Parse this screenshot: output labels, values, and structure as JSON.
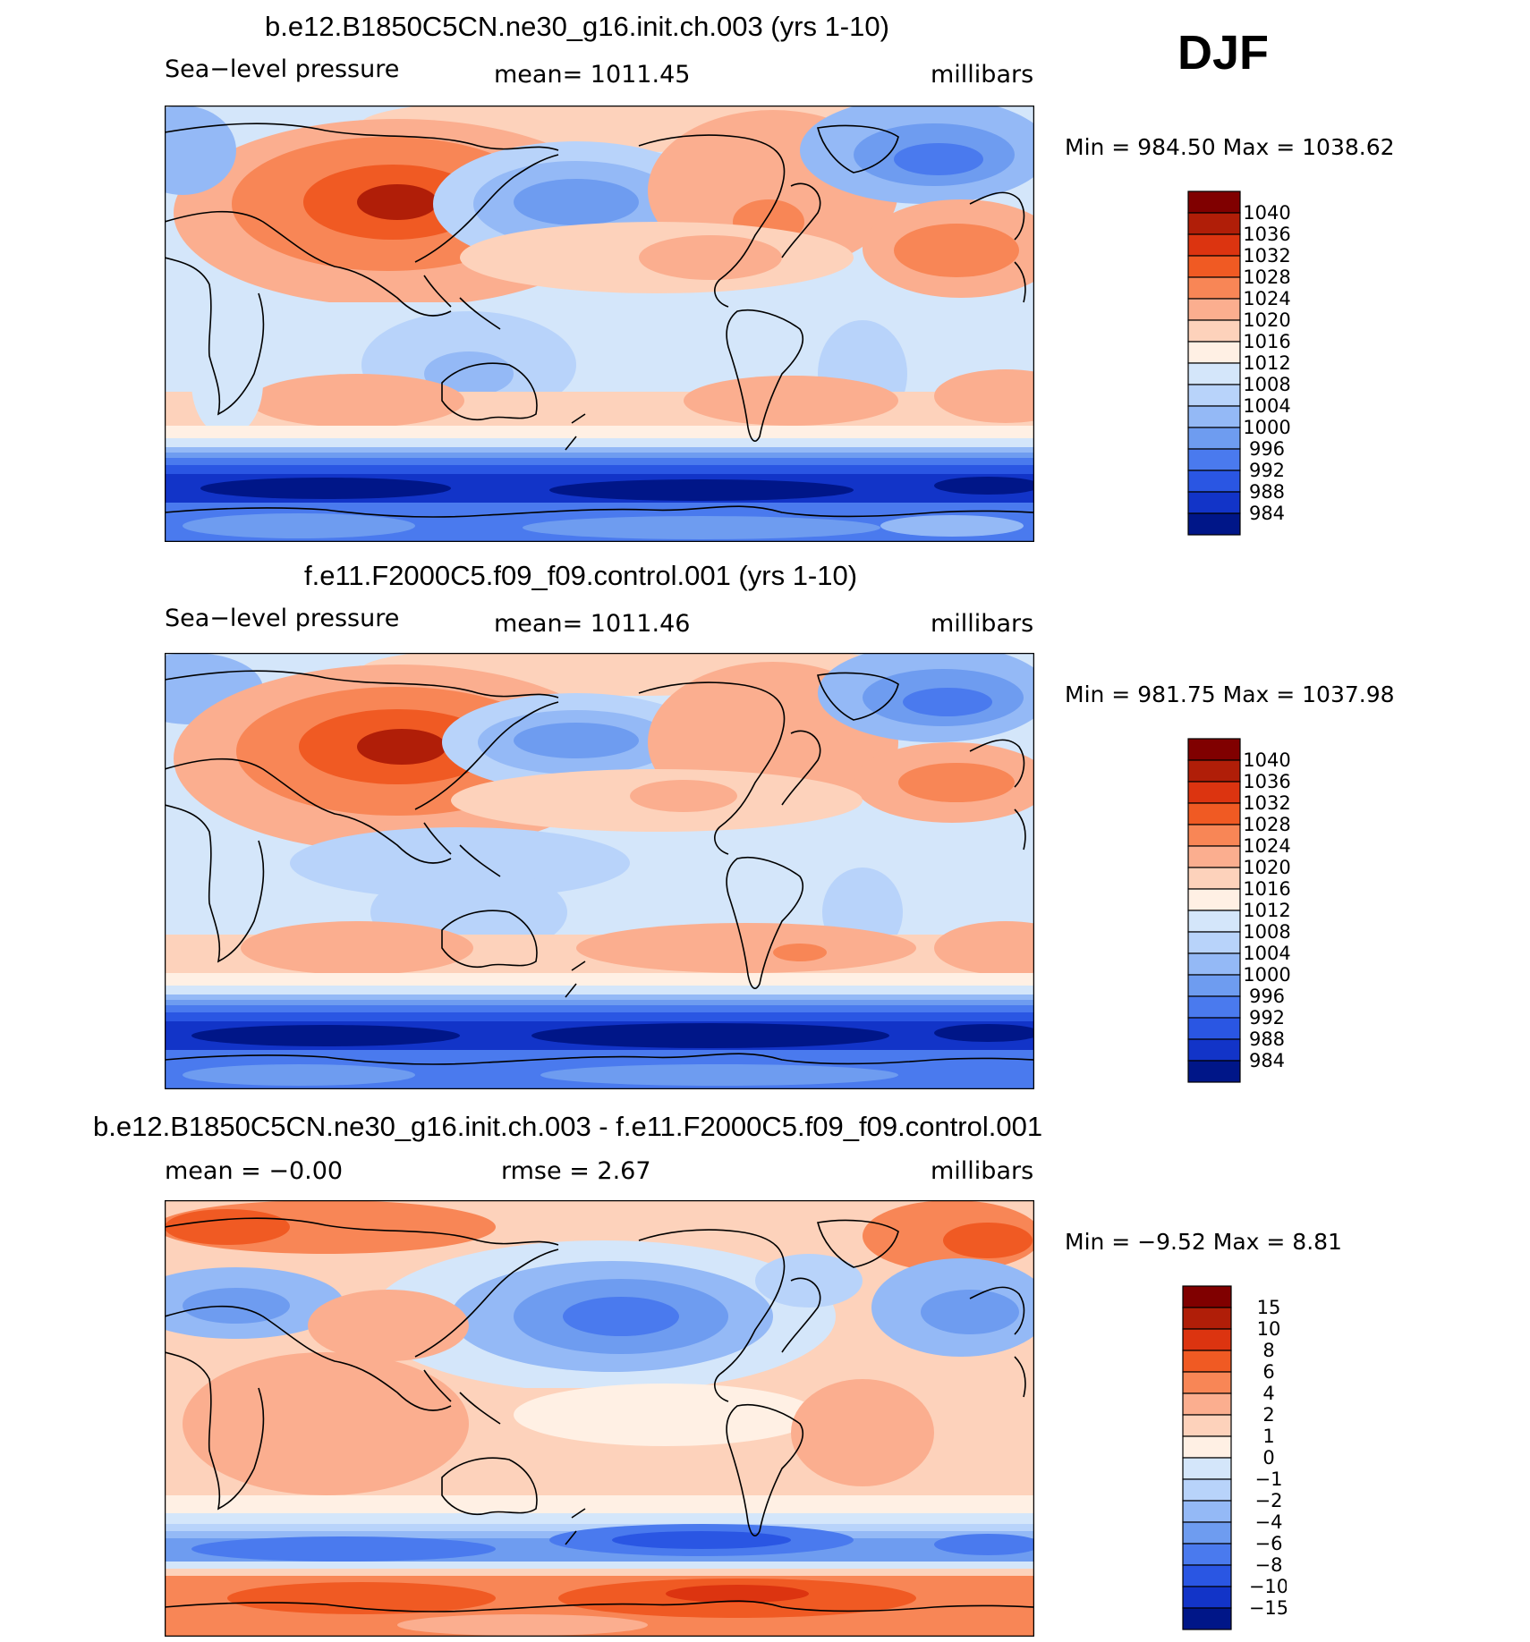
{
  "season_label": "DJF",
  "chart_data": [
    {
      "type": "heatmap",
      "title": "b.e12.B1850C5CN.ne30_g16.init.ch.003 (yrs 1-10)",
      "left_label": "Sea−level pressure",
      "center_label": "mean=  1011.45",
      "units": "millibars",
      "minmax": "Min  =  984.50  Max  =  1038.62",
      "colorbar": {
        "levels": [
          "1040",
          "1036",
          "1032",
          "1028",
          "1024",
          "1020",
          "1016",
          "1012",
          "1008",
          "1004",
          "1000",
          "996",
          "992",
          "988",
          "984"
        ],
        "colors": [
          "#800000",
          "#b01e08",
          "#dc3410",
          "#f05a23",
          "#f88656",
          "#fbae8f",
          "#fdd2bb",
          "#fff0e4",
          "#d4e6fa",
          "#b8d3fa",
          "#94b9f6",
          "#6e9cf0",
          "#4a7aee",
          "#2a56e3",
          "#1234c8",
          "#001688"
        ]
      }
    },
    {
      "type": "heatmap",
      "title": "f.e11.F2000C5.f09_f09.control.001 (yrs 1-10)",
      "left_label": "Sea−level pressure",
      "center_label": "mean=  1011.46",
      "units": "millibars",
      "minmax": "Min  =  981.75  Max  =  1037.98",
      "colorbar": {
        "levels": [
          "1040",
          "1036",
          "1032",
          "1028",
          "1024",
          "1020",
          "1016",
          "1012",
          "1008",
          "1004",
          "1000",
          "996",
          "992",
          "988",
          "984"
        ],
        "colors": [
          "#800000",
          "#b01e08",
          "#dc3410",
          "#f05a23",
          "#f88656",
          "#fbae8f",
          "#fdd2bb",
          "#fff0e4",
          "#d4e6fa",
          "#b8d3fa",
          "#94b9f6",
          "#6e9cf0",
          "#4a7aee",
          "#2a56e3",
          "#1234c8",
          "#001688"
        ]
      }
    },
    {
      "type": "heatmap",
      "title": "b.e12.B1850C5CN.ne30_g16.init.ch.003 - f.e11.F2000C5.f09_f09.control.001",
      "left_label": "mean  =    −0.00",
      "center_label": "rmse  =      2.67",
      "units": "millibars",
      "minmax": "Min  =     −9.52  Max  =      8.81",
      "colorbar": {
        "levels": [
          "15",
          "10",
          "8",
          "6",
          "4",
          "2",
          "1",
          "0",
          "−1",
          "−2",
          "−4",
          "−6",
          "−8",
          "−10",
          "−15"
        ],
        "colors": [
          "#800000",
          "#b01e08",
          "#dc3410",
          "#f05a23",
          "#f88656",
          "#fbae8f",
          "#fdd2bb",
          "#fff0e4",
          "#d4e6fa",
          "#b8d3fa",
          "#94b9f6",
          "#6e9cf0",
          "#4a7aee",
          "#2a56e3",
          "#1234c8",
          "#001688"
        ]
      }
    }
  ]
}
